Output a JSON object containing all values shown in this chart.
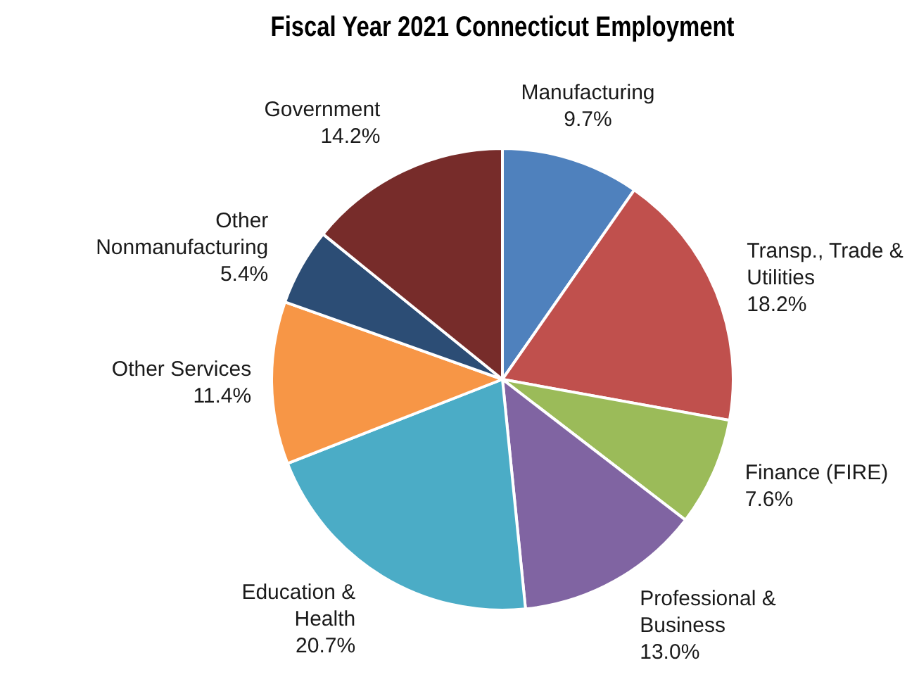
{
  "chart_data": {
    "type": "pie",
    "title": "Fiscal Year 2021 Connecticut Employment",
    "categories": [
      "Manufacturing",
      "Transp., Trade & Utilities",
      "Finance (FIRE)",
      "Professional & Business",
      "Education & Health",
      "Other Services",
      "Other Nonmanufacturing",
      "Government"
    ],
    "values": [
      9.7,
      18.2,
      7.6,
      13.0,
      20.7,
      11.4,
      5.4,
      14.2
    ],
    "value_labels": [
      "9.7%",
      "18.2%",
      "7.6%",
      "13.0%",
      "20.7%",
      "11.4%",
      "5.4%",
      "14.2%"
    ],
    "colors": [
      "#4f81bd",
      "#c0504d",
      "#9bbb59",
      "#8064a2",
      "#4bacc6",
      "#f79646",
      "#2c4d75",
      "#772c2a"
    ],
    "legend": false
  }
}
